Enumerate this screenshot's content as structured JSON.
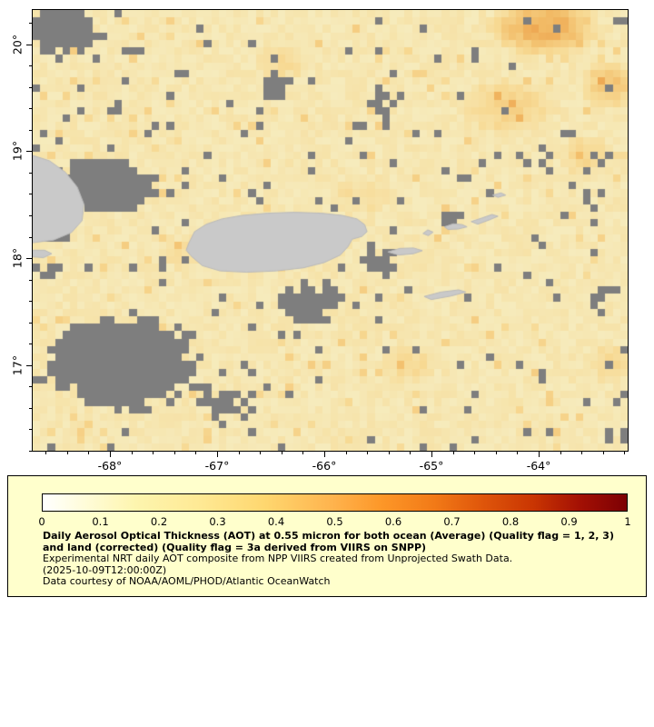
{
  "map": {
    "extent": {
      "lon_min": -68.72,
      "lon_max": -63.17,
      "lat_min": 16.2,
      "lat_max": 20.32
    },
    "x_ticks": [
      {
        "lon": -68,
        "label": "-68°"
      },
      {
        "lon": -67,
        "label": "-67°"
      },
      {
        "lon": -66,
        "label": "-66°"
      },
      {
        "lon": -65,
        "label": "-65°"
      },
      {
        "lon": -64,
        "label": "-64°"
      }
    ],
    "y_ticks": [
      {
        "lat": 20,
        "label": "20°"
      },
      {
        "lat": 19,
        "label": "19°"
      },
      {
        "lat": 18,
        "label": "18°"
      },
      {
        "lat": 17,
        "label": "17°"
      }
    ],
    "grid": {
      "cols": 80,
      "rows": 59,
      "seed": 1337
    },
    "colors": {
      "missing": "#7e7e7e",
      "land": "#c9c9c9",
      "land_edge": "#bababa",
      "ocean_ramp": [
        "#f6ebbc",
        "#f7d993",
        "#f2bb66",
        "#e88f3a"
      ]
    },
    "gray_regions": [
      [
        0.05,
        0.05,
        0.09,
        0.07,
        0.9
      ],
      [
        0.16,
        0.1,
        0.05,
        0.05,
        0.55
      ],
      [
        0.13,
        0.22,
        0.05,
        0.04,
        0.45
      ],
      [
        0.29,
        0.06,
        0.04,
        0.04,
        0.5
      ],
      [
        0.41,
        0.17,
        0.07,
        0.06,
        0.65
      ],
      [
        0.36,
        0.28,
        0.04,
        0.04,
        0.45
      ],
      [
        0.47,
        0.08,
        0.03,
        0.03,
        0.4
      ],
      [
        0.59,
        0.21,
        0.06,
        0.06,
        0.6
      ],
      [
        0.55,
        0.33,
        0.04,
        0.04,
        0.4
      ],
      [
        0.67,
        0.1,
        0.04,
        0.04,
        0.45
      ],
      [
        0.74,
        0.16,
        0.04,
        0.03,
        0.4
      ],
      [
        0.9,
        0.07,
        0.04,
        0.04,
        0.45
      ],
      [
        0.99,
        0.03,
        0.04,
        0.04,
        0.55
      ],
      [
        0.12,
        0.4,
        0.13,
        0.09,
        0.85
      ],
      [
        0.02,
        0.5,
        0.07,
        0.07,
        0.7
      ],
      [
        0.28,
        0.42,
        0.05,
        0.04,
        0.45
      ],
      [
        0.03,
        0.6,
        0.06,
        0.05,
        0.5
      ],
      [
        0.15,
        0.8,
        0.18,
        0.15,
        0.95
      ],
      [
        0.33,
        0.9,
        0.08,
        0.07,
        0.6
      ],
      [
        0.46,
        0.66,
        0.09,
        0.08,
        0.7
      ],
      [
        0.58,
        0.57,
        0.07,
        0.06,
        0.6
      ],
      [
        0.7,
        0.47,
        0.05,
        0.045,
        0.5
      ],
      [
        0.76,
        0.52,
        0.04,
        0.04,
        0.4
      ],
      [
        0.85,
        0.34,
        0.07,
        0.06,
        0.55
      ],
      [
        0.94,
        0.43,
        0.05,
        0.06,
        0.5
      ],
      [
        0.96,
        0.65,
        0.05,
        0.08,
        0.55
      ],
      [
        0.83,
        0.62,
        0.035,
        0.035,
        0.35
      ],
      [
        0.98,
        0.97,
        0.04,
        0.04,
        0.5
      ],
      [
        0.62,
        0.36,
        0.04,
        0.03,
        0.35
      ],
      [
        0.5,
        0.47,
        0.03,
        0.03,
        0.3
      ]
    ],
    "orange_regions": [
      [
        0.86,
        0.04,
        0.1,
        0.07,
        0.85
      ],
      [
        0.97,
        0.17,
        0.05,
        0.06,
        0.6
      ],
      [
        0.8,
        0.22,
        0.09,
        0.07,
        0.4
      ],
      [
        0.93,
        0.33,
        0.05,
        0.05,
        0.35
      ],
      [
        0.42,
        0.12,
        0.05,
        0.04,
        0.3
      ],
      [
        0.63,
        0.8,
        0.05,
        0.05,
        0.3
      ],
      [
        0.25,
        0.55,
        0.05,
        0.04,
        0.2
      ],
      [
        0.55,
        0.42,
        0.06,
        0.05,
        0.22
      ],
      [
        0.97,
        0.8,
        0.04,
        0.05,
        0.3
      ]
    ],
    "land_polygons": {
      "hispaniola_east": [
        [
          0,
          0.33
        ],
        [
          0.028,
          0.342
        ],
        [
          0.055,
          0.368
        ],
        [
          0.075,
          0.402
        ],
        [
          0.086,
          0.44
        ],
        [
          0.083,
          0.478
        ],
        [
          0.065,
          0.505
        ],
        [
          0.035,
          0.522
        ],
        [
          0,
          0.528
        ]
      ],
      "saona_islet": [
        [
          0,
          0.545
        ],
        [
          0.02,
          0.545
        ],
        [
          0.032,
          0.553
        ],
        [
          0.018,
          0.562
        ],
        [
          0,
          0.56
        ]
      ],
      "puerto_rico": [
        [
          0.262,
          0.53
        ],
        [
          0.272,
          0.503
        ],
        [
          0.292,
          0.486
        ],
        [
          0.318,
          0.474
        ],
        [
          0.352,
          0.466
        ],
        [
          0.395,
          0.461
        ],
        [
          0.44,
          0.459
        ],
        [
          0.485,
          0.461
        ],
        [
          0.52,
          0.466
        ],
        [
          0.545,
          0.474
        ],
        [
          0.558,
          0.487
        ],
        [
          0.562,
          0.503
        ],
        [
          0.553,
          0.514
        ],
        [
          0.537,
          0.52
        ],
        [
          0.53,
          0.537
        ],
        [
          0.517,
          0.556
        ],
        [
          0.49,
          0.573
        ],
        [
          0.455,
          0.585
        ],
        [
          0.41,
          0.592
        ],
        [
          0.36,
          0.595
        ],
        [
          0.315,
          0.592
        ],
        [
          0.285,
          0.58
        ],
        [
          0.266,
          0.558
        ],
        [
          0.258,
          0.545
        ]
      ],
      "vieques": [
        [
          0.597,
          0.549
        ],
        [
          0.617,
          0.541
        ],
        [
          0.64,
          0.54
        ],
        [
          0.655,
          0.546
        ],
        [
          0.64,
          0.553
        ],
        [
          0.615,
          0.556
        ]
      ],
      "culebra": [
        [
          0.656,
          0.507
        ],
        [
          0.664,
          0.499
        ],
        [
          0.673,
          0.504
        ],
        [
          0.665,
          0.512
        ]
      ],
      "st_thomas_st_john": [
        [
          0.692,
          0.492
        ],
        [
          0.707,
          0.485
        ],
        [
          0.722,
          0.487
        ],
        [
          0.73,
          0.492
        ],
        [
          0.715,
          0.497
        ],
        [
          0.698,
          0.498
        ]
      ],
      "tortola_chain": [
        [
          0.737,
          0.48
        ],
        [
          0.755,
          0.472
        ],
        [
          0.772,
          0.464
        ],
        [
          0.782,
          0.468
        ],
        [
          0.768,
          0.476
        ],
        [
          0.748,
          0.486
        ]
      ],
      "anegada": [
        [
          0.773,
          0.42
        ],
        [
          0.787,
          0.415
        ],
        [
          0.795,
          0.42
        ],
        [
          0.782,
          0.425
        ]
      ],
      "st_croix": [
        [
          0.658,
          0.65
        ],
        [
          0.686,
          0.64
        ],
        [
          0.716,
          0.635
        ],
        [
          0.728,
          0.64
        ],
        [
          0.703,
          0.649
        ],
        [
          0.67,
          0.657
        ]
      ]
    }
  },
  "legend": {
    "bg": "#ffffcc",
    "colorbar": {
      "stops": [
        [
          "#ffffff",
          0
        ],
        [
          "#fffcda",
          7
        ],
        [
          "#fdf5ae",
          16
        ],
        [
          "#fee994",
          27
        ],
        [
          "#fed76f",
          38
        ],
        [
          "#feb24c",
          50
        ],
        [
          "#fd9728",
          58
        ],
        [
          "#f27a17",
          67
        ],
        [
          "#e0570b",
          75
        ],
        [
          "#c93502",
          84
        ],
        [
          "#a31004",
          92
        ],
        [
          "#7c0004",
          100
        ]
      ],
      "ticks": [
        "0",
        "0.1",
        "0.2",
        "0.3",
        "0.4",
        "0.5",
        "0.6",
        "0.7",
        "0.8",
        "0.9",
        "1"
      ]
    },
    "title": "Daily Aerosol Optical Thickness (AOT) at 0.55 micron for both ocean (Average) (Quality flag = 1, 2, 3) and land (corrected) (Quality flag = 3a derived from VIIRS on SNPP)",
    "line_experimental": "Experimental NRT daily AOT composite from NPP VIIRS created from Unprojected Swath Data.",
    "line_timestamp": "(2025-10-09T12:00:00Z)",
    "line_courtesy": "Data courtesy of NOAA/AOML/PHOD/Atlantic OceanWatch"
  }
}
